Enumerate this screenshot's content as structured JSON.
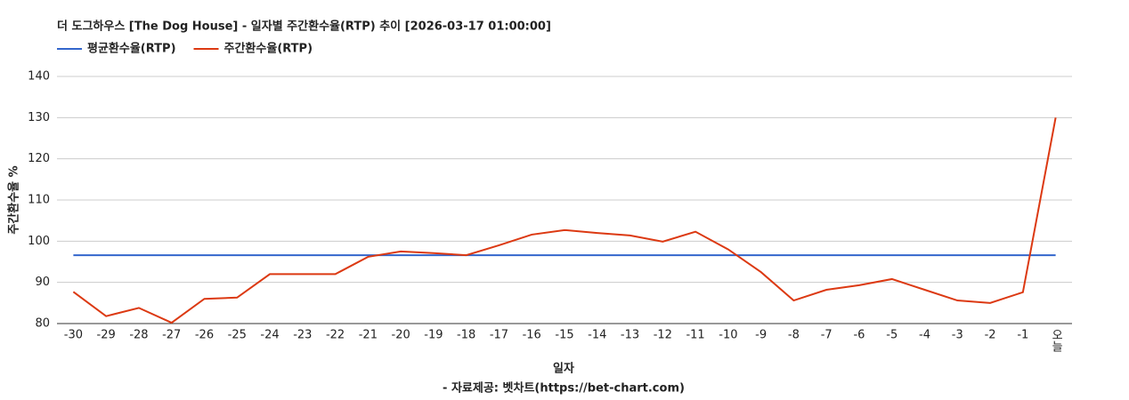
{
  "chart_data": {
    "type": "line",
    "title": "더 도그하우스 [The Dog House] - 일자별 주간환수율(RTP) 추이 [2026-03-17 01:00:00]",
    "x_label": "일자",
    "y_label": "주간환수율 %",
    "source": "- 자료제공: 벳차트(https://bet-chart.com)",
    "categories": [
      "-30",
      "-29",
      "-28",
      "-27",
      "-26",
      "-25",
      "-24",
      "-23",
      "-22",
      "-21",
      "-20",
      "-19",
      "-18",
      "-17",
      "-16",
      "-15",
      "-14",
      "-13",
      "-12",
      "-11",
      "-10",
      "-9",
      "-8",
      "-7",
      "-6",
      "-5",
      "-4",
      "-3",
      "-2",
      "-1",
      "오늘"
    ],
    "series": [
      {
        "name": "평균환수율(RTP)",
        "color": "#3366cc",
        "values": [
          96.6,
          96.6,
          96.6,
          96.6,
          96.6,
          96.6,
          96.6,
          96.6,
          96.6,
          96.6,
          96.6,
          96.6,
          96.6,
          96.6,
          96.6,
          96.6,
          96.6,
          96.6,
          96.6,
          96.6,
          96.6,
          96.6,
          96.6,
          96.6,
          96.6,
          96.6,
          96.6,
          96.6,
          96.6,
          96.6,
          96.6
        ]
      },
      {
        "name": "주간환수율(RTP)",
        "color": "#dc3912",
        "values": [
          87.7,
          81.8,
          83.8,
          80.2,
          86.0,
          86.3,
          92.0,
          92.0,
          92.0,
          96.2,
          97.5,
          97.1,
          96.6,
          99.0,
          101.6,
          102.7,
          102.0,
          101.4,
          99.9,
          102.3,
          98.0,
          92.5,
          85.6,
          88.2,
          89.3,
          90.8,
          88.2,
          85.6,
          85.0,
          87.6,
          130.0
        ]
      }
    ],
    "ylim": [
      80,
      140
    ],
    "yticks": [
      80,
      90,
      100,
      110,
      120,
      130,
      140
    ],
    "grid": true
  }
}
